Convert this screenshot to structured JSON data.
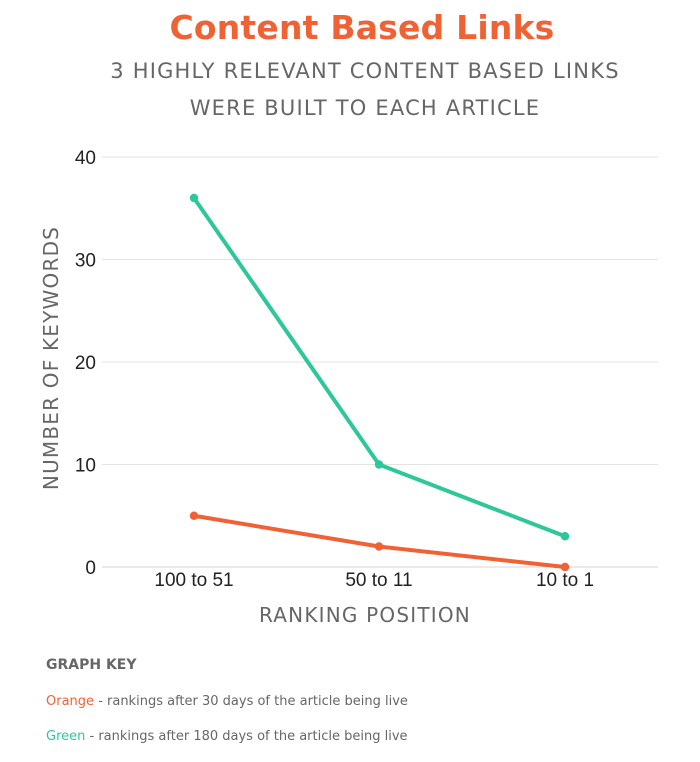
{
  "chart_data": {
    "type": "line",
    "title": "Content Based Links",
    "subtitle_lines": [
      "3 HIGHLY RELEVANT CONTENT BASED LINKS",
      "WERE BUILT TO EACH ARTICLE"
    ],
    "xlabel": "RANKING POSITION",
    "ylabel": "NUMBER OF KEYWORDS",
    "categories": [
      "100 to 51",
      "50 to 11",
      "10 to 1"
    ],
    "ylim": [
      0,
      40
    ],
    "yticks": [
      "0",
      "10",
      "20",
      "30",
      "40"
    ],
    "grid": true,
    "series": [
      {
        "color": "#2ec79a",
        "values": [
          36,
          10,
          3
        ]
      },
      {
        "color": "#ef6234",
        "values": [
          5,
          2,
          0
        ]
      }
    ]
  },
  "legend": {
    "title": "GRAPH KEY",
    "items": [
      {
        "color_word": "Orange",
        "text": "- rankings after 30 days of the article being live",
        "color": "#ef6234"
      },
      {
        "color_word": "Green",
        "text": "- rankings after 180 days of the article being live",
        "color": "#2ec79a"
      }
    ]
  }
}
